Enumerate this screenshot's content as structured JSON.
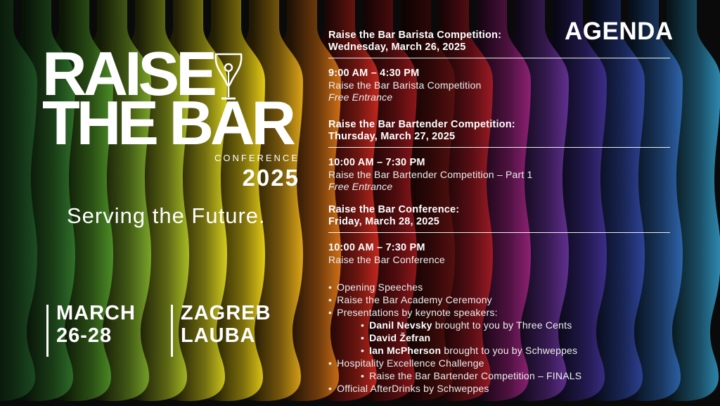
{
  "logo": {
    "line1": "RAISE",
    "line2": "THE BAR",
    "conference_label": "CONFERENCE",
    "year": "2025",
    "tagline": "Serving the Future."
  },
  "event_info": {
    "date_line1": "MARCH",
    "date_line2": "26-28",
    "venue_line1": "ZAGREB",
    "venue_line2": "LAUBA"
  },
  "agenda": {
    "title": "AGENDA",
    "bullet_char": "•",
    "sections": [
      {
        "heading_line1": "Raise the Bar Barista Competition:",
        "heading_line2": "Wednesday, March 26, 2025",
        "time": "9:00 AM – 4:30 PM",
        "event": "Raise the Bar Barista Competition",
        "note": "Free Entrance"
      },
      {
        "heading_line1": "Raise the Bar Bartender Competition:",
        "heading_line2": "Thursday, March 27, 2025",
        "time": "10:00 AM – 7:30 PM",
        "event": "Raise the Bar Bartender Competition – Part 1",
        "note": "Free Entrance"
      },
      {
        "heading_line1": "Raise the Bar Conference:",
        "heading_line2": "Friday, March 28, 2025",
        "time": "10:00 AM – 7:30 PM",
        "event": "Raise the Bar Conference"
      }
    ],
    "bullets": [
      {
        "level": 1,
        "text": "Opening Speeches"
      },
      {
        "level": 1,
        "text": "Raise the Bar Academy Ceremony"
      },
      {
        "level": 1,
        "text": "Presentations by keynote speakers:"
      },
      {
        "level": 2,
        "bold": "Danil Nevsky",
        "text": " brought to you by Three Cents"
      },
      {
        "level": 2,
        "bold": "David Žefran",
        "text": ""
      },
      {
        "level": 2,
        "bold": "Ian McPherson",
        "text": " brought to you by Schweppes"
      },
      {
        "level": 1,
        "text": "Hospitality Excellence Challenge"
      },
      {
        "level": 2,
        "text": "Raise the Bar Bartender Competition – FINALS"
      },
      {
        "level": 1,
        "text": "Official AfterDrinks by Schweppes"
      }
    ]
  },
  "background": {
    "base_color": "#0a0a0a",
    "bottle_colors": [
      "#1d4d22",
      "#2f6f29",
      "#4c8e26",
      "#7aa528",
      "#a7bb24",
      "#d2cb1e",
      "#e3c916",
      "#dca418",
      "#cf6f16",
      "#c1271d",
      "#8c161a",
      "#55100f",
      "#9c1a24",
      "#8d2174",
      "#603090",
      "#3c2d88",
      "#2e4398",
      "#2e64ac",
      "#2f8ab2"
    ]
  },
  "colors": {
    "text": "#ffffff"
  }
}
